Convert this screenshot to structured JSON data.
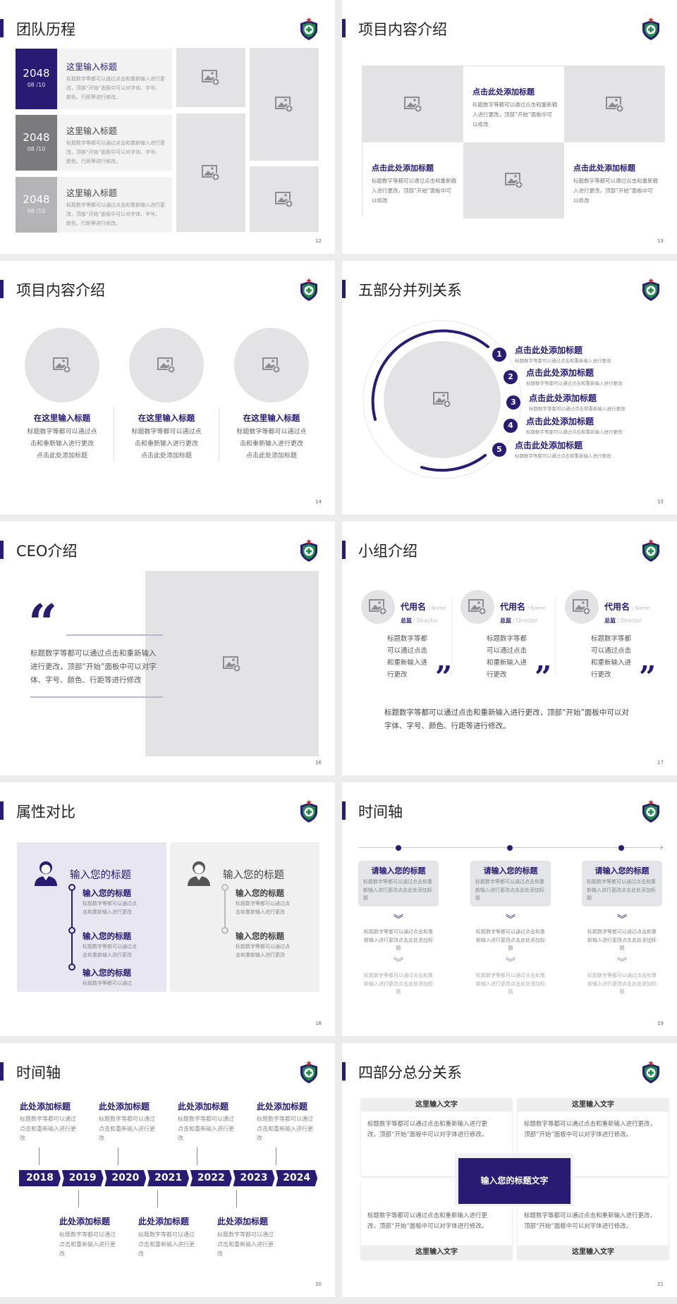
{
  "colors": {
    "accent": "#291a74",
    "gray_dark": "#7b7b7d",
    "gray_light": "#b4b4b6",
    "placeholder": "#e3e3e5"
  },
  "slides": [
    {
      "page": "12",
      "title": "团队历程",
      "items": [
        {
          "year": "2048",
          "date": "08 /10",
          "heading": "这里输入标题",
          "text": "标题数字等都可以通过点击和重新输入进行更改，顶部“开始”面板中可以对字体、字号、颜色、行距等进行修改。"
        },
        {
          "year": "2048",
          "date": "08 /10",
          "heading": "这里输入标题",
          "text": "标题数字等都可以通过点击和重新输入进行更改，顶部“开始”面板中可以对字体、字号、颜色、行距等进行修改。"
        },
        {
          "year": "2048",
          "date": "08 /10",
          "heading": "这里输入标题",
          "text": "标题数字等都可以通过点击和重新输入进行更改，顶部“开始”面板中可以对字体、字号、颜色、行距等进行修改。"
        }
      ]
    },
    {
      "page": "13",
      "title": "项目内容介绍",
      "cards": [
        {
          "heading": "点击此处添加标题",
          "text": "标题数字等都可以通过点击和重新输入进行更改，顶部“开始”面板中可以修改"
        },
        {
          "heading": "点击此处添加标题",
          "text": "标题数字等都可以通过点击和重新输入进行更改，顶部“开始”面板中可以修改"
        },
        {
          "heading": "点击此处添加标题",
          "text": "标题数字等都可以通过点击和重新输入进行更改，顶部“开始”面板中可以修改"
        }
      ]
    },
    {
      "page": "14",
      "title": "项目内容介绍",
      "items": [
        {
          "heading": "在这里输入标题",
          "lines": [
            "标题数字等都可以通过点",
            "击和重新输入进行更改",
            "点击此处添加标题"
          ]
        },
        {
          "heading": "在这里输入标题",
          "lines": [
            "标题数字等都可以通过点",
            "击和重新输入进行更改",
            "点击此处添加标题"
          ]
        },
        {
          "heading": "在这里输入标题",
          "lines": [
            "标题数字等都可以通过点",
            "击和重新输入进行更改",
            "点击此处添加标题"
          ]
        }
      ]
    },
    {
      "page": "15",
      "title": "五部分并列关系",
      "items": [
        {
          "num": "1",
          "heading": "点击此处添加标题",
          "text": "标题数字等都可以通过点击和重新输入进行更改"
        },
        {
          "num": "2",
          "heading": "点击此处添加标题",
          "text": "标题数字等都可以通过点击和重新输入进行更改"
        },
        {
          "num": "3",
          "heading": "点击此处添加标题",
          "text": "标题数字等都可以通过点击和重新输入进行更改"
        },
        {
          "num": "4",
          "heading": "点击此处添加标题",
          "text": "标题数字等都可以通过点击和重新输入进行更改"
        },
        {
          "num": "5",
          "heading": "点击此处添加标题",
          "text": "标题数字等都可以通过点击和重新输入进行更改"
        }
      ]
    },
    {
      "page": "16",
      "title": "CEO介绍",
      "quote_mark": "“",
      "text": "标题数字等都可以通过点击和重新输入进行更改，顶部“开始”面板中可以对字体、字号、颜色、行距等进行修改"
    },
    {
      "page": "17",
      "title": "小组介绍",
      "members": [
        {
          "name": "代用名",
          "name_en": "/ Name",
          "role": "总监",
          "role_en": "/  Director",
          "text": "标题数字等都可以通过点击和重新输入进行更改",
          "quote_mark": "”"
        },
        {
          "name": "代用名",
          "name_en": "/ Name",
          "role": "总监",
          "role_en": "/  Director",
          "text": "标题数字等都可以通过点击和重新输入进行更改",
          "quote_mark": "”"
        },
        {
          "name": "代用名",
          "name_en": "/ Name",
          "role": "总监",
          "role_en": "/  Director",
          "text": "标题数字等都可以通过点击和重新输入进行更改",
          "quote_mark": "”"
        }
      ],
      "footer": "标题数字等都可以通过点击和重新输入进行更改，顶部“开始”面板中可以对字体、字号、颜色、行距等进行修改。"
    },
    {
      "page": "18",
      "title": "属性对比",
      "panels": [
        {
          "heading": "输入您的标题",
          "items": [
            {
              "title": "输入您的标题",
              "text": "标题数字等都可以通过点击和重新输入进行更改"
            },
            {
              "title": "输入您的标题",
              "text": "标题数字等都可以通过点击和重新输入进行更改"
            },
            {
              "title": "输入您的标题",
              "text": "标题数字等都可以通过"
            }
          ]
        },
        {
          "heading": "输入您的标题",
          "items": [
            {
              "title": "输入您的标题",
              "text": "标题数字等都可以通过点击和重新输入进行更改"
            },
            {
              "title": "输入您的标题",
              "text": "标题数字等都可以通过点击和重新输入进行更改"
            }
          ]
        }
      ]
    },
    {
      "page": "19",
      "title": "时间轴",
      "columns": [
        {
          "heading": "请输入您的标题",
          "text": "标题数字等都可以通过点击和重新输入进行更改点击此处添加标题",
          "text2": "标题数字等都可以通过点击和重新输入进行更改点击此处添加标题",
          "text3": "标题数字等都可以通过点击和重新输入进行更改点击此处添加标题"
        },
        {
          "heading": "请输入您的标题",
          "text": "标题数字等都可以通过点击和重新输入进行更改点击此处添加标题",
          "text2": "标题数字等都可以通过点击和重新输入进行更改点击此处添加标题",
          "text3": "标题数字等都可以通过点击和重新输入进行更改点击此处添加标题"
        },
        {
          "heading": "请输入您的标题",
          "text": "标题数字等都可以通过点击和重新输入进行更改点击此处添加标题",
          "text2": "标题数字等都可以通过点击和重新输入进行更改点击此处添加标题",
          "text3": "标题数字等都可以通过点击和重新输入进行更改点击此处添加标题"
        }
      ]
    },
    {
      "page": "20",
      "title": "时间轴",
      "years": [
        "2018",
        "2019",
        "2020",
        "2021",
        "2022",
        "2023",
        "2024"
      ],
      "top": [
        {
          "heading": "此处添加标题",
          "text": "标题数字等都可以通过点击和重新输入进行更改"
        },
        {
          "heading": "此处添加标题",
          "text": "标题数字等都可以通过点击和重新输入进行更改"
        },
        {
          "heading": "此处添加标题",
          "text": "标题数字等都可以通过点击和重新输入进行更改"
        },
        {
          "heading": "此处添加标题",
          "text": "标题数字等都可以通过点击和重新输入进行更改"
        }
      ],
      "bottom": [
        {
          "heading": "此处添加标题",
          "text": "标题数字等都可以通过点击和重新输入进行更改"
        },
        {
          "heading": "此处添加标题",
          "text": "标题数字等都可以通过点击和重新输入进行更改"
        },
        {
          "heading": "此处添加标题",
          "text": "标题数字等都可以通过点击和重新输入进行更改"
        }
      ]
    },
    {
      "page": "21",
      "title": "四部分总分关系",
      "center": "输入您的标题文字",
      "quads": [
        {
          "label": "这里输入文字",
          "text": "标题数字等都可以通过点击和重新输入进行更改，顶部“开始”面板中可以对字体进行修改。"
        },
        {
          "label": "这里输入文字",
          "text": "标题数字等都可以通过点击和重新输入进行更改，顶部“开始”面板中可以对字体进行修改。"
        },
        {
          "label": "这里输入文字",
          "text": "标题数字等都可以通过点击和重新输入进行更改，顶部“开始”面板中可以对字体进行修改。"
        },
        {
          "label": "这里输入文字",
          "text": "标题数字等都可以通过点击和重新输入进行更改，顶部“开始”面板中可以对字体进行修改。"
        }
      ]
    }
  ]
}
